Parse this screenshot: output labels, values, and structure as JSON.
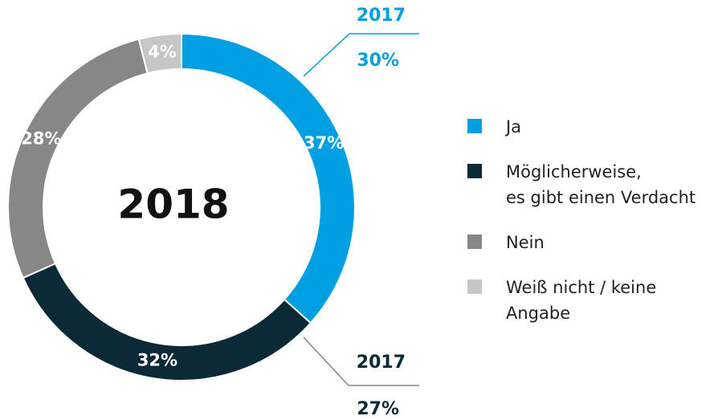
{
  "chart_data": {
    "type": "donut",
    "center_label": "2018",
    "categories": [
      "Ja",
      "Möglicherweise,\nes gibt einen Verdacht",
      "Nein",
      "Weiß nicht  / keine\nAngabe"
    ],
    "values": [
      37,
      32,
      28,
      4
    ],
    "value_labels": [
      "37%",
      "32%",
      "28%",
      "4%"
    ],
    "colors": [
      "#009fe3",
      "#0b2a35",
      "#878787",
      "#c6c6c6"
    ],
    "comparisons": [
      {
        "label": "2017",
        "value": 30,
        "value_label": "30%",
        "category": 0
      },
      {
        "label": "2017",
        "value": 27,
        "value_label": "27%",
        "category": 1
      }
    ]
  }
}
